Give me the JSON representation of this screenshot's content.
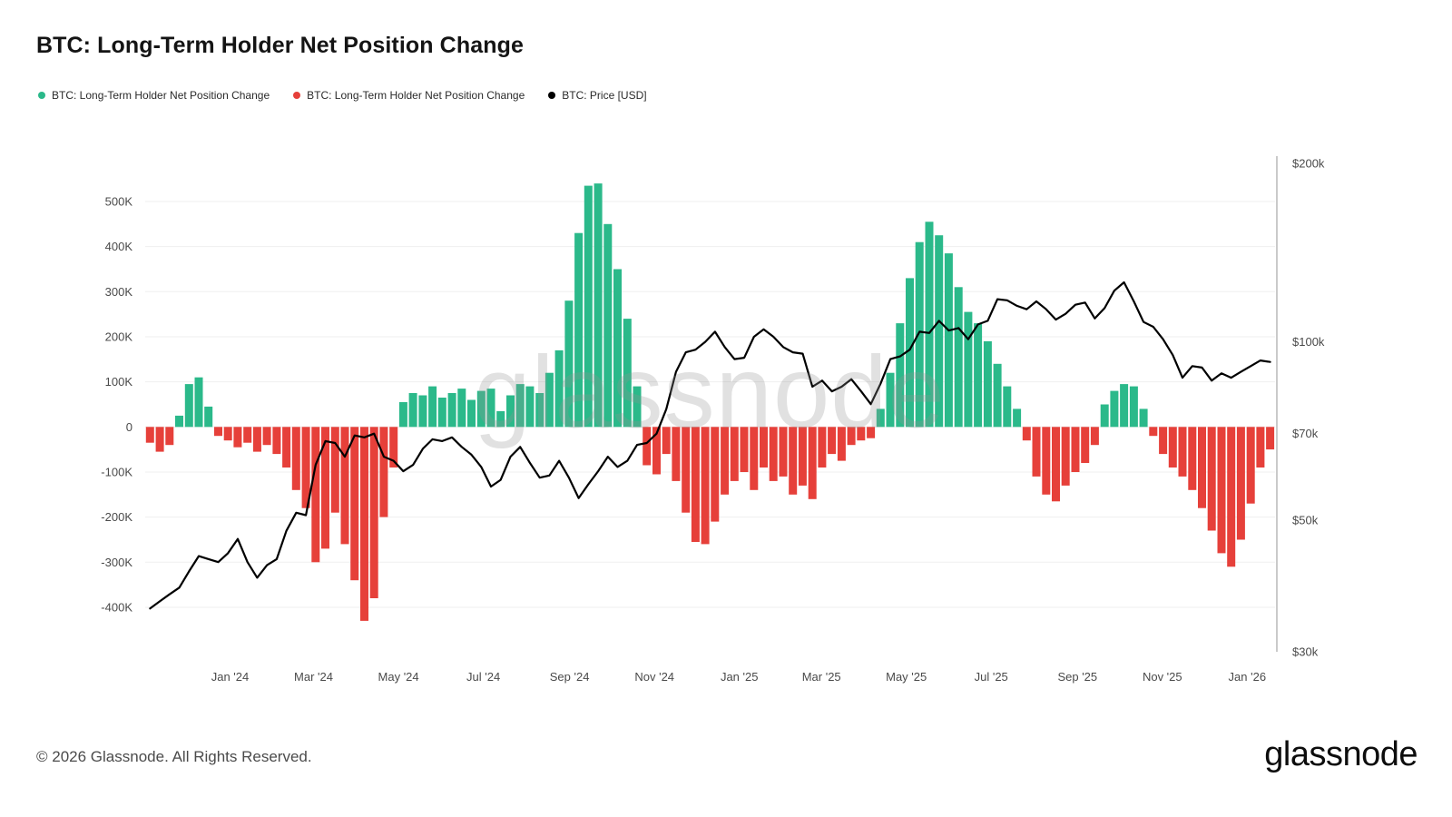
{
  "page": {
    "title": "BTC: Long-Term Holder Net Position Change",
    "footer_copyright": "© 2026 Glassnode. All Rights Reserved.",
    "brand_logo": "glassnode",
    "watermark": "glassnode"
  },
  "legend": {
    "items": [
      {
        "label": "BTC: Long-Term Holder Net Position Change",
        "color": "#2bb98a"
      },
      {
        "label": "BTC: Long-Term Holder Net Position Change",
        "color": "#e6403a"
      },
      {
        "label": "BTC: Price [USD]",
        "color": "#000000"
      }
    ]
  },
  "chart_data": {
    "type": "bar+line",
    "title": "BTC: Long-Term Holder Net Position Change",
    "x_start_date": "2023-11-01",
    "x_step_days": 7,
    "x_ticks": [
      {
        "label": "Jan '24",
        "date": "2024-01-01"
      },
      {
        "label": "Mar '24",
        "date": "2024-03-01"
      },
      {
        "label": "May '24",
        "date": "2024-05-01"
      },
      {
        "label": "Jul '24",
        "date": "2024-07-01"
      },
      {
        "label": "Sep '24",
        "date": "2024-09-01"
      },
      {
        "label": "Nov '24",
        "date": "2024-11-01"
      },
      {
        "label": "Jan '25",
        "date": "2025-01-01"
      },
      {
        "label": "Mar '25",
        "date": "2025-03-01"
      },
      {
        "label": "May '25",
        "date": "2025-05-01"
      },
      {
        "label": "Jul '25",
        "date": "2025-07-01"
      },
      {
        "label": "Sep '25",
        "date": "2025-09-01"
      },
      {
        "label": "Nov '25",
        "date": "2025-11-01"
      },
      {
        "label": "Jan '26",
        "date": "2026-01-01"
      }
    ],
    "left_axis": {
      "grid": true,
      "tick_labels": [
        "500K",
        "400K",
        "300K",
        "200K",
        "100K",
        "0",
        "-100K",
        "-200K",
        "-300K",
        "-400K"
      ],
      "tick_values_k": [
        500,
        400,
        300,
        200,
        100,
        0,
        -100,
        -200,
        -300,
        -400
      ]
    },
    "right_axis": {
      "scale": "log",
      "tick_labels": [
        "$200k",
        "$100k",
        "$70k",
        "$50k",
        "$30k"
      ],
      "tick_values_usd": [
        200000,
        100000,
        70000,
        50000,
        30000
      ]
    },
    "series": [
      {
        "name": "BTC: Long-Term Holder Net Position Change",
        "type": "bar",
        "axis": "left",
        "unit": "BTC, values in thousands (K)",
        "color_positive": "#2bb98a",
        "color_negative": "#e6403a",
        "values_k": [
          -35,
          -55,
          -40,
          25,
          95,
          110,
          45,
          -20,
          -30,
          -45,
          -35,
          -55,
          -40,
          -60,
          -90,
          -140,
          -180,
          -300,
          -270,
          -190,
          -260,
          -340,
          -430,
          -380,
          -200,
          -90,
          55,
          75,
          70,
          90,
          65,
          75,
          85,
          60,
          80,
          85,
          35,
          70,
          95,
          90,
          75,
          120,
          170,
          280,
          430,
          535,
          540,
          450,
          350,
          240,
          90,
          -85,
          -105,
          -60,
          -120,
          -190,
          -255,
          -260,
          -210,
          -150,
          -120,
          -100,
          -140,
          -90,
          -120,
          -110,
          -150,
          -130,
          -160,
          -90,
          -60,
          -75,
          -40,
          -30,
          -25,
          40,
          120,
          230,
          330,
          410,
          455,
          425,
          385,
          310,
          255,
          230,
          190,
          140,
          90,
          40,
          -30,
          -110,
          -150,
          -165,
          -130,
          -100,
          -80,
          -40,
          50,
          80,
          95,
          90,
          40,
          -20,
          -60,
          -90,
          -110,
          -140,
          -180,
          -230,
          -280,
          -310,
          -250,
          -170,
          -90,
          -50
        ]
      },
      {
        "name": "BTC: Price [USD]",
        "type": "line",
        "axis": "right",
        "unit": "USD, values in thousands ($k)",
        "color": "#000000",
        "values_usd_k": [
          35.5,
          36.5,
          37.5,
          38.5,
          41,
          43.5,
          43,
          42.5,
          44,
          46.5,
          42.5,
          40,
          42,
          43,
          48,
          51.5,
          51,
          62,
          68,
          67.5,
          64,
          69.5,
          69,
          70,
          64,
          63,
          60.5,
          62,
          66,
          68.5,
          68,
          69,
          66.5,
          64.5,
          61.5,
          57,
          58.5,
          64,
          66.5,
          62.5,
          59,
          59.5,
          63,
          59,
          54.5,
          57.5,
          60.5,
          64,
          61.5,
          63,
          67,
          67.5,
          70,
          77,
          89,
          96,
          97,
          100,
          104,
          98,
          93.5,
          94,
          102,
          105,
          102,
          98,
          96,
          95.5,
          84,
          86,
          82.5,
          84,
          86.5,
          82.5,
          78.5,
          85,
          93.5,
          94.5,
          97,
          104,
          103.5,
          108.5,
          104.5,
          105.5,
          101,
          107,
          108.5,
          118,
          117.5,
          115,
          113.5,
          117,
          113.5,
          109,
          111.5,
          115.5,
          116.5,
          109.5,
          114,
          122,
          126,
          117,
          108,
          106,
          101,
          95,
          87,
          91,
          90.5,
          86,
          88.5,
          87,
          89,
          91,
          93,
          92.5
        ]
      }
    ]
  }
}
